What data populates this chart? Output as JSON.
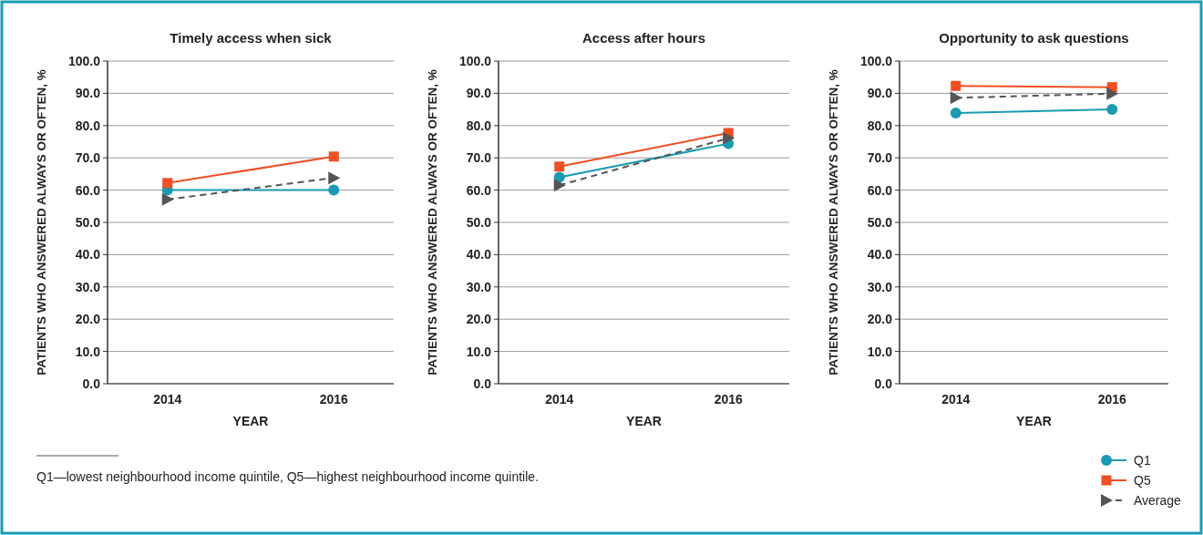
{
  "chart_data": [
    {
      "type": "line",
      "title": "Timely access when sick",
      "xlabel": "YEAR",
      "ylabel": "PATIENTS WHO ANSWERED ALWAYS OR OFTEN, %",
      "categories": [
        "2014",
        "2016"
      ],
      "ylim": [
        0,
        100
      ],
      "yticks": [
        {
          "value": 0,
          "label": "0.0"
        },
        {
          "value": 10,
          "label": "10.0"
        },
        {
          "value": 20,
          "label": "20.0"
        },
        {
          "value": 30,
          "label": "30.0"
        },
        {
          "value": 40,
          "label": "40.0"
        },
        {
          "value": 50,
          "label": "50.0"
        },
        {
          "value": 60,
          "label": "60.0"
        },
        {
          "value": 70,
          "label": "70.0"
        },
        {
          "value": 80,
          "label": "80.0"
        },
        {
          "value": 90,
          "label": "90.0"
        },
        {
          "value": 100,
          "label": "100.0"
        }
      ],
      "grid": "y",
      "legend": false,
      "annotations": [
        "Q1—lowest neighbourhood income quintile, Q5—highest neighbourhood income quintile."
      ],
      "series": [
        {
          "color": "#1a9bb0",
          "values": [
            60.0,
            60.0
          ],
          "marker": "circle",
          "line_style": "solid"
        },
        {
          "color": "#f04e23",
          "values": [
            62.2,
            70.4
          ],
          "marker": "square",
          "line_style": "solid"
        },
        {
          "color": "#555555",
          "values": [
            57.1,
            63.8
          ],
          "marker": "triangle",
          "line_style": "dashed"
        }
      ]
    },
    {
      "type": "line",
      "title": "Access after hours",
      "xlabel": "YEAR",
      "ylabel": "PATIENTS WHO ANSWERED ALWAYS OR OFTEN, %",
      "categories": [
        "2014",
        "2016"
      ],
      "ylim": [
        0,
        100
      ],
      "yticks": [
        {
          "value": 0,
          "label": "0.0"
        },
        {
          "value": 10,
          "label": "10.0"
        },
        {
          "value": 20,
          "label": "20.0"
        },
        {
          "value": 30,
          "label": "30.0"
        },
        {
          "value": 40,
          "label": "40.0"
        },
        {
          "value": 50,
          "label": "50.0"
        },
        {
          "value": 60,
          "label": "60.0"
        },
        {
          "value": 70,
          "label": "70.0"
        },
        {
          "value": 80,
          "label": "80.0"
        },
        {
          "value": 90,
          "label": "90.0"
        },
        {
          "value": 100,
          "label": "100.0"
        }
      ],
      "grid": "y",
      "legend": false,
      "series": [
        {
          "color": "#1a9bb0",
          "values": [
            64.0,
            74.4
          ],
          "marker": "circle",
          "line_style": "solid"
        },
        {
          "color": "#f04e23",
          "values": [
            67.3,
            77.7
          ],
          "marker": "square",
          "line_style": "solid"
        },
        {
          "color": "#555555",
          "values": [
            61.5,
            76.1
          ],
          "marker": "triangle",
          "line_style": "dashed"
        }
      ]
    },
    {
      "type": "line",
      "title": "Opportunity to ask questions",
      "xlabel": "YEAR",
      "ylabel": "PATIENTS WHO ANSWERED ALWAYS OR OFTEN, %",
      "categories": [
        "2014",
        "2016"
      ],
      "ylim": [
        0,
        100
      ],
      "yticks": [
        {
          "value": 0,
          "label": "0.0"
        },
        {
          "value": 10,
          "label": "10.0"
        },
        {
          "value": 20,
          "label": "20.0"
        },
        {
          "value": 30,
          "label": "30.0"
        },
        {
          "value": 40,
          "label": "40.0"
        },
        {
          "value": 50,
          "label": "50.0"
        },
        {
          "value": 60,
          "label": "60.0"
        },
        {
          "value": 70,
          "label": "70.0"
        },
        {
          "value": 80,
          "label": "80.0"
        },
        {
          "value": 90,
          "label": "90.0"
        },
        {
          "value": 100,
          "label": "100.0"
        }
      ],
      "grid": "y",
      "legend": "bottom right",
      "series": [
        {
          "name": "Q1",
          "color": "#1a9bb0",
          "values": [
            83.9,
            85.0
          ],
          "marker": "circle",
          "line_style": "solid"
        },
        {
          "name": "Q5",
          "color": "#f04e23",
          "values": [
            92.3,
            91.9
          ],
          "marker": "square",
          "line_style": "solid"
        },
        {
          "name": "Average",
          "color": "#555555",
          "values": [
            88.6,
            89.9
          ],
          "marker": "triangle",
          "line_style": "dashed"
        }
      ]
    }
  ]
}
